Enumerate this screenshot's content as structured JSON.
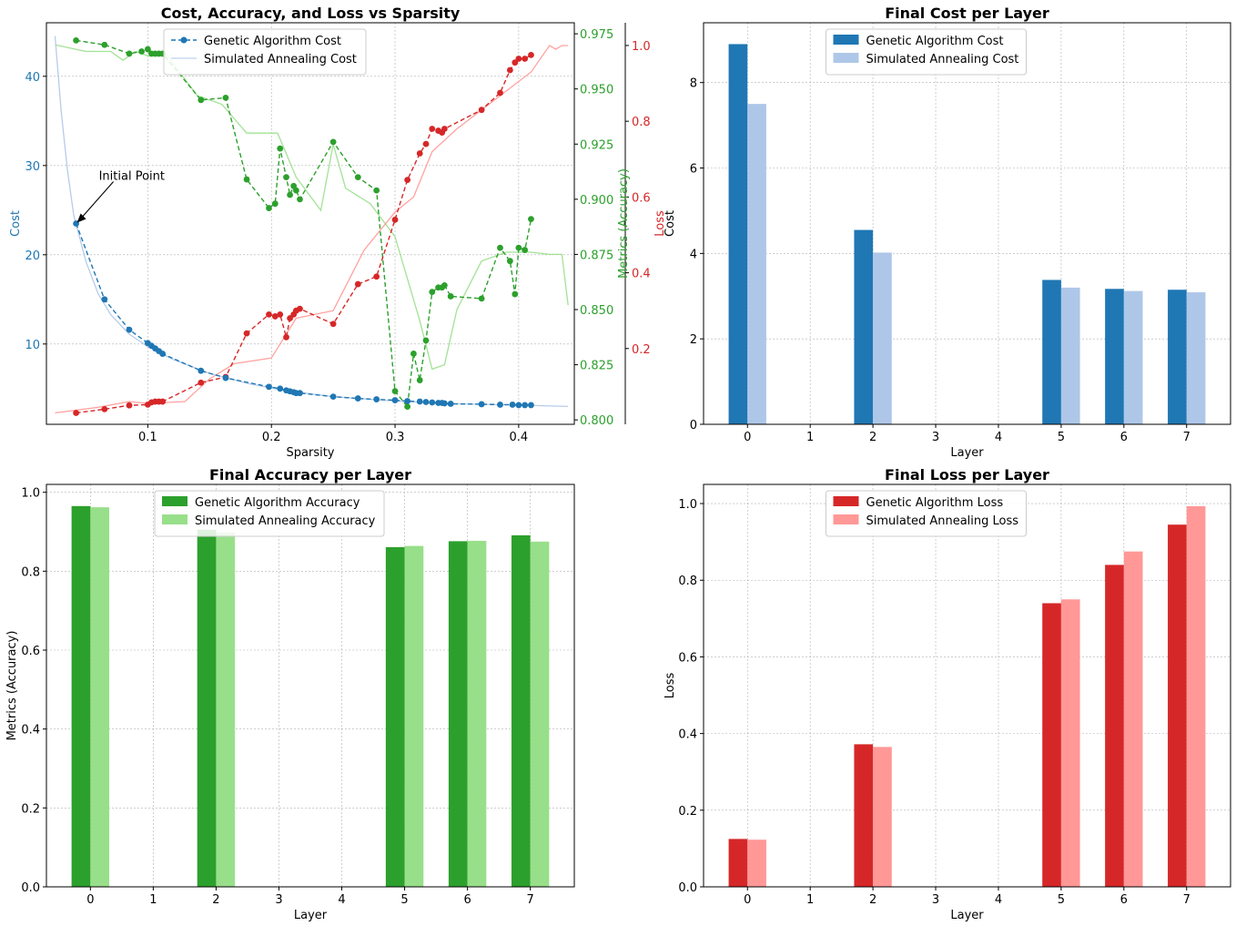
{
  "colors": {
    "ga_cost": "#1f77b4",
    "sa_cost": "#aec7e8",
    "ga_acc": "#2ca02c",
    "sa_acc": "#98df8a",
    "ga_loss": "#d62728",
    "sa_loss": "#ff9896",
    "grid": "#b0b0b0"
  },
  "chart_data": [
    {
      "type": "line",
      "title": "Cost, Accuracy, and Loss vs Sparsity",
      "xlabel": "Sparsity",
      "ylabel": "Cost",
      "ylabel_right1": "Metrics (Accuracy)",
      "ylabel_right2": "Loss",
      "xlim": [
        0.018,
        0.445
      ],
      "ylim": [
        1,
        46
      ],
      "ylim_right1": [
        0.798,
        0.98
      ],
      "ylim_right2": [
        0.0,
        1.06
      ],
      "xticks": [
        "0.1",
        "0.2",
        "0.3",
        "0.4"
      ],
      "xtick_values": [
        0.1,
        0.2,
        0.3,
        0.4
      ],
      "yticks": [
        "10",
        "20",
        "30",
        "40"
      ],
      "ytick_values": [
        10,
        20,
        30,
        40
      ],
      "yticks_right1": [
        "0.800",
        "0.825",
        "0.850",
        "0.875",
        "0.900",
        "0.925",
        "0.950",
        "0.975"
      ],
      "ytick_values_right1": [
        0.8,
        0.825,
        0.85,
        0.875,
        0.9,
        0.925,
        0.95,
        0.975
      ],
      "yticks_right2": [
        "0.2",
        "0.4",
        "0.6",
        "0.8",
        "1.0"
      ],
      "ytick_values_right2": [
        0.2,
        0.4,
        0.6,
        0.8,
        1.0
      ],
      "grid": true,
      "legend_position": "top-center",
      "legend": [
        "Genetic Algorithm Cost",
        "Simulated Annealing Cost"
      ],
      "annotation": {
        "text": "Initial Point",
        "x": 0.042,
        "y": 23.5
      },
      "series": [
        {
          "name": "Genetic Algorithm Cost",
          "axis": "left",
          "style": "dashed-markers",
          "x": [
            0.042,
            0.065,
            0.085,
            0.1,
            0.103,
            0.106,
            0.109,
            0.112,
            0.143,
            0.163,
            0.198,
            0.207,
            0.212,
            0.215,
            0.218,
            0.22,
            0.223,
            0.25,
            0.27,
            0.285,
            0.3,
            0.31,
            0.32,
            0.325,
            0.33,
            0.335,
            0.338,
            0.34,
            0.345,
            0.37,
            0.385,
            0.395,
            0.4,
            0.405,
            0.41
          ],
          "y": [
            23.5,
            15.0,
            11.6,
            10.1,
            9.8,
            9.5,
            9.2,
            8.9,
            7.0,
            6.2,
            5.2,
            5.0,
            4.8,
            4.7,
            4.6,
            4.5,
            4.5,
            4.1,
            3.9,
            3.8,
            3.7,
            3.6,
            3.55,
            3.5,
            3.45,
            3.4,
            3.4,
            3.35,
            3.3,
            3.25,
            3.2,
            3.2,
            3.15,
            3.15,
            3.15
          ]
        },
        {
          "name": "Simulated Annealing Cost",
          "axis": "left",
          "style": "solid",
          "x": [
            0.025,
            0.03,
            0.035,
            0.04,
            0.05,
            0.06,
            0.07,
            0.085,
            0.1,
            0.12,
            0.15,
            0.18,
            0.21,
            0.25,
            0.3,
            0.35,
            0.4,
            0.44
          ],
          "y": [
            44.5,
            36.0,
            29.5,
            24.5,
            19.2,
            15.6,
            13.3,
            11.1,
            9.7,
            8.3,
            6.7,
            5.6,
            4.8,
            4.1,
            3.6,
            3.3,
            3.15,
            3.0
          ]
        },
        {
          "name": "Genetic Algorithm Accuracy",
          "axis": "right1",
          "style": "dashed-markers",
          "x": [
            0.042,
            0.065,
            0.085,
            0.095,
            0.1,
            0.103,
            0.106,
            0.109,
            0.112,
            0.143,
            0.163,
            0.18,
            0.198,
            0.203,
            0.207,
            0.212,
            0.215,
            0.218,
            0.22,
            0.223,
            0.25,
            0.27,
            0.285,
            0.3,
            0.31,
            0.315,
            0.32,
            0.325,
            0.33,
            0.335,
            0.338,
            0.34,
            0.345,
            0.37,
            0.385,
            0.393,
            0.397,
            0.4,
            0.405,
            0.41
          ],
          "y": [
            0.972,
            0.97,
            0.966,
            0.967,
            0.968,
            0.966,
            0.966,
            0.966,
            0.966,
            0.945,
            0.946,
            0.909,
            0.896,
            0.898,
            0.923,
            0.91,
            0.902,
            0.906,
            0.904,
            0.9,
            0.926,
            0.91,
            0.904,
            0.813,
            0.806,
            0.83,
            0.818,
            0.836,
            0.858,
            0.86,
            0.86,
            0.861,
            0.856,
            0.855,
            0.878,
            0.872,
            0.857,
            0.878,
            0.877,
            0.891
          ]
        },
        {
          "name": "Simulated Annealing Accuracy",
          "axis": "right1",
          "style": "solid",
          "x": [
            0.025,
            0.05,
            0.07,
            0.08,
            0.09,
            0.1,
            0.11,
            0.115,
            0.12,
            0.14,
            0.16,
            0.18,
            0.205,
            0.22,
            0.24,
            0.25,
            0.26,
            0.28,
            0.3,
            0.32,
            0.33,
            0.34,
            0.35,
            0.37,
            0.39,
            0.41,
            0.425,
            0.435,
            0.44
          ],
          "y": [
            0.97,
            0.967,
            0.967,
            0.963,
            0.967,
            0.965,
            0.965,
            0.966,
            0.962,
            0.947,
            0.943,
            0.93,
            0.93,
            0.91,
            0.895,
            0.925,
            0.905,
            0.898,
            0.883,
            0.845,
            0.823,
            0.825,
            0.85,
            0.872,
            0.876,
            0.876,
            0.875,
            0.875,
            0.852
          ]
        },
        {
          "name": "Genetic Algorithm Loss",
          "axis": "right2",
          "style": "dashed-markers",
          "x": [
            0.042,
            0.065,
            0.085,
            0.1,
            0.103,
            0.106,
            0.109,
            0.112,
            0.143,
            0.163,
            0.18,
            0.198,
            0.203,
            0.207,
            0.212,
            0.215,
            0.218,
            0.22,
            0.223,
            0.25,
            0.27,
            0.285,
            0.3,
            0.31,
            0.32,
            0.325,
            0.33,
            0.335,
            0.338,
            0.34,
            0.37,
            0.385,
            0.393,
            0.397,
            0.4,
            0.405,
            0.41
          ],
          "y": [
            0.03,
            0.04,
            0.05,
            0.052,
            0.058,
            0.06,
            0.06,
            0.06,
            0.11,
            0.125,
            0.24,
            0.29,
            0.285,
            0.29,
            0.23,
            0.28,
            0.29,
            0.3,
            0.305,
            0.265,
            0.37,
            0.39,
            0.54,
            0.645,
            0.715,
            0.74,
            0.78,
            0.775,
            0.77,
            0.78,
            0.83,
            0.875,
            0.935,
            0.955,
            0.965,
            0.965,
            0.975
          ]
        },
        {
          "name": "Simulated Annealing Loss",
          "axis": "right2",
          "style": "solid",
          "x": [
            0.025,
            0.06,
            0.085,
            0.1,
            0.13,
            0.15,
            0.17,
            0.2,
            0.22,
            0.25,
            0.275,
            0.3,
            0.315,
            0.33,
            0.35,
            0.37,
            0.39,
            0.41,
            0.425,
            0.43,
            0.435,
            0.44
          ],
          "y": [
            0.03,
            0.045,
            0.06,
            0.055,
            0.06,
            0.12,
            0.16,
            0.175,
            0.28,
            0.3,
            0.46,
            0.56,
            0.6,
            0.72,
            0.78,
            0.83,
            0.88,
            0.93,
            1.0,
            0.99,
            1.0,
            1.0
          ]
        }
      ]
    },
    {
      "type": "bar",
      "title": "Final Cost per Layer",
      "xlabel": "Layer",
      "ylabel": "Cost",
      "categories": [
        "0",
        "1",
        "2",
        "3",
        "4",
        "5",
        "6",
        "7"
      ],
      "xlim": [
        -0.7,
        7.7
      ],
      "ylim": [
        0,
        9.4
      ],
      "yticks": [
        "0",
        "2",
        "4",
        "6",
        "8"
      ],
      "ytick_values": [
        0,
        2,
        4,
        6,
        8
      ],
      "grid": true,
      "legend_position": "top-center",
      "series": [
        {
          "name": "Genetic Algorithm Cost",
          "values": [
            8.9,
            null,
            4.55,
            null,
            null,
            3.38,
            3.17,
            3.15
          ]
        },
        {
          "name": "Simulated Annealing Cost",
          "values": [
            7.5,
            null,
            4.02,
            null,
            null,
            3.2,
            3.12,
            3.09
          ]
        }
      ]
    },
    {
      "type": "bar",
      "title": "Final Accuracy per Layer",
      "xlabel": "Layer",
      "ylabel": "Metrics (Accuracy)",
      "categories": [
        "0",
        "1",
        "2",
        "3",
        "4",
        "5",
        "6",
        "7"
      ],
      "xlim": [
        -0.7,
        7.7
      ],
      "ylim": [
        0,
        1.02
      ],
      "yticks": [
        "0.0",
        "0.2",
        "0.4",
        "0.6",
        "0.8",
        "1.0"
      ],
      "ytick_values": [
        0,
        0.2,
        0.4,
        0.6,
        0.8,
        1.0
      ],
      "grid": true,
      "legend_position": "top-center",
      "series": [
        {
          "name": "Genetic Algorithm Accuracy",
          "values": [
            0.965,
            null,
            0.905,
            null,
            null,
            0.861,
            0.876,
            0.891
          ]
        },
        {
          "name": "Simulated Annealing Accuracy",
          "values": [
            0.962,
            null,
            0.898,
            null,
            null,
            0.864,
            0.877,
            0.875
          ]
        }
      ]
    },
    {
      "type": "bar",
      "title": "Final Loss per Layer",
      "xlabel": "Layer",
      "ylabel": "Loss",
      "categories": [
        "0",
        "1",
        "2",
        "3",
        "4",
        "5",
        "6",
        "7"
      ],
      "xlim": [
        -0.7,
        7.7
      ],
      "ylim": [
        0,
        1.05
      ],
      "yticks": [
        "0.0",
        "0.2",
        "0.4",
        "0.6",
        "0.8",
        "1.0"
      ],
      "ytick_values": [
        0,
        0.2,
        0.4,
        0.6,
        0.8,
        1.0
      ],
      "grid": true,
      "legend_position": "top-center",
      "series": [
        {
          "name": "Genetic Algorithm Loss",
          "values": [
            0.125,
            null,
            0.372,
            null,
            null,
            0.74,
            0.84,
            0.945
          ]
        },
        {
          "name": "Simulated Annealing Loss",
          "values": [
            0.123,
            null,
            0.365,
            null,
            null,
            0.75,
            0.875,
            0.993
          ]
        }
      ]
    }
  ]
}
